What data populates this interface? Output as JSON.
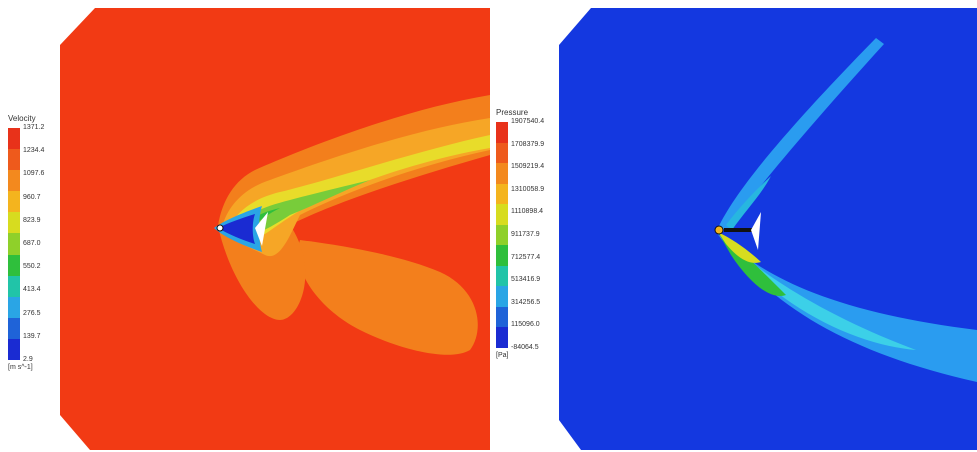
{
  "velocity_panel": {
    "legend": {
      "title": "Velocity",
      "unit": "[m s^-1]",
      "ticks": [
        "1371.2",
        "1234.4",
        "1097.6",
        "960.7",
        "823.9",
        "687.0",
        "550.2",
        "413.4",
        "276.5",
        "139.7",
        "2.9"
      ],
      "colors": [
        "#e8321a",
        "#ee5a1c",
        "#f3891e",
        "#f4b41e",
        "#d7dc1f",
        "#8fd02a",
        "#2fbf3c",
        "#21c4a8",
        "#2aa5e5",
        "#1f63d8",
        "#1a2bd2"
      ]
    },
    "background_color": "#f23a14"
  },
  "pressure_panel": {
    "legend": {
      "title": "Pressure",
      "unit": "[Pa]",
      "ticks": [
        "1907540.4",
        "1708379.9",
        "1509219.4",
        "1310058.9",
        "1110898.4",
        "911737.9",
        "712577.4",
        "513416.9",
        "314256.5",
        "115096.0",
        "-84064.5"
      ],
      "colors": [
        "#e8321a",
        "#ee5a1c",
        "#f3891e",
        "#f4b41e",
        "#d7dc1f",
        "#8fd02a",
        "#2fbf3c",
        "#21c4a8",
        "#2aa5e5",
        "#1f63d8",
        "#1a2bd2"
      ]
    },
    "background_color": "#1438e0"
  }
}
